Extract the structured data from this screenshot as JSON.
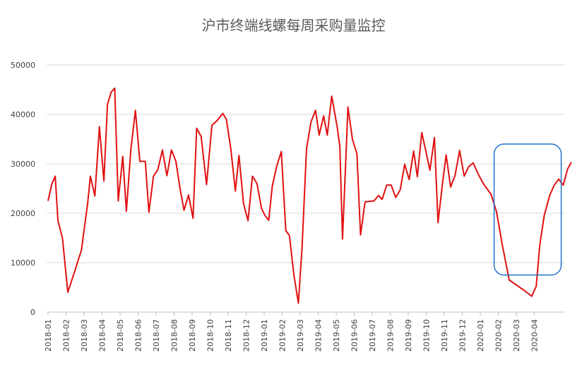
{
  "chart_data": {
    "type": "line",
    "title": "沪市终端线螺每周采购量监控",
    "xlabel": "",
    "ylabel": "",
    "ylim": [
      0,
      50000
    ],
    "yticks": [
      "0",
      "10000",
      "20000",
      "30000",
      "40000",
      "50000"
    ],
    "x_tick_labels": [
      "2018-01",
      "2018-02",
      "2018-03",
      "2018-04",
      "2018-05",
      "2018-06",
      "2018-07",
      "2018-08",
      "2018-09",
      "2018-10",
      "2018-11",
      "2018-12",
      "2019-01",
      "2019-02",
      "2019-03",
      "2019-04",
      "2019-05",
      "2019-06",
      "2019-07",
      "2019-08",
      "2019-09",
      "2019-10",
      "2019-11",
      "2019-12",
      "2020-01",
      "2020-02",
      "2020-03",
      "2020-04"
    ],
    "grid": true,
    "legend": "none",
    "line_color": "#e01010",
    "highlight_color": "#1f73c8",
    "highlight_region": {
      "x_start": "2020-02",
      "x_end": "2020-04",
      "y_start": 7500,
      "y_end": 34000
    },
    "series": [
      {
        "values": [
          [
            0,
            22500
          ],
          [
            0.2,
            25800
          ],
          [
            0.4,
            27500
          ],
          [
            0.55,
            18500
          ],
          [
            0.8,
            15000
          ],
          [
            1.1,
            4000
          ],
          [
            1.5,
            8500
          ],
          [
            1.85,
            12500
          ],
          [
            2.2,
            22000
          ],
          [
            2.35,
            27500
          ],
          [
            2.6,
            23500
          ],
          [
            2.85,
            37500
          ],
          [
            3.1,
            26500
          ],
          [
            3.3,
            42000
          ],
          [
            3.5,
            44500
          ],
          [
            3.7,
            45300
          ],
          [
            3.9,
            22500
          ],
          [
            4.15,
            31500
          ],
          [
            4.35,
            20400
          ],
          [
            4.6,
            33000
          ],
          [
            4.85,
            40800
          ],
          [
            5.1,
            30500
          ],
          [
            5.4,
            30500
          ],
          [
            5.6,
            20200
          ],
          [
            5.85,
            27500
          ],
          [
            6.1,
            28800
          ],
          [
            6.35,
            32800
          ],
          [
            6.6,
            27600
          ],
          [
            6.85,
            32800
          ],
          [
            7.1,
            30500
          ],
          [
            7.35,
            24500
          ],
          [
            7.55,
            20600
          ],
          [
            7.8,
            23700
          ],
          [
            8.05,
            19000
          ],
          [
            8.25,
            37200
          ],
          [
            8.5,
            35500
          ],
          [
            8.8,
            25800
          ],
          [
            9.1,
            37800
          ],
          [
            9.4,
            38800
          ],
          [
            9.7,
            40200
          ],
          [
            9.9,
            39000
          ],
          [
            10.15,
            33000
          ],
          [
            10.4,
            24500
          ],
          [
            10.6,
            31700
          ],
          [
            10.85,
            22000
          ],
          [
            11.1,
            18500
          ],
          [
            11.35,
            27500
          ],
          [
            11.6,
            26000
          ],
          [
            11.85,
            21000
          ],
          [
            12.05,
            19500
          ],
          [
            12.25,
            18600
          ],
          [
            12.45,
            25500
          ],
          [
            12.7,
            29500
          ],
          [
            12.95,
            32500
          ],
          [
            13.2,
            16500
          ],
          [
            13.4,
            15500
          ],
          [
            13.65,
            7500
          ],
          [
            13.9,
            1800
          ],
          [
            14.1,
            13000
          ],
          [
            14.35,
            33000
          ],
          [
            14.6,
            38500
          ],
          [
            14.85,
            40800
          ],
          [
            15.05,
            35800
          ],
          [
            15.3,
            39700
          ],
          [
            15.5,
            35800
          ],
          [
            15.75,
            43700
          ],
          [
            16.05,
            37500
          ],
          [
            16.2,
            33500
          ],
          [
            16.35,
            14800
          ],
          [
            16.65,
            41500
          ],
          [
            16.9,
            35000
          ],
          [
            17.15,
            32000
          ],
          [
            17.35,
            15600
          ],
          [
            17.6,
            22300
          ],
          [
            17.85,
            22400
          ],
          [
            18.1,
            22500
          ],
          [
            18.35,
            23600
          ],
          [
            18.55,
            22800
          ],
          [
            18.8,
            25700
          ],
          [
            19.05,
            25700
          ],
          [
            19.3,
            23200
          ],
          [
            19.55,
            24700
          ],
          [
            19.8,
            29900
          ],
          [
            20.05,
            26800
          ],
          [
            20.3,
            32600
          ],
          [
            20.5,
            27400
          ],
          [
            20.75,
            36300
          ],
          [
            20.95,
            33000
          ],
          [
            21.2,
            28700
          ],
          [
            21.45,
            35300
          ],
          [
            21.65,
            18100
          ],
          [
            21.9,
            26000
          ],
          [
            22.1,
            31800
          ],
          [
            22.35,
            25300
          ],
          [
            22.6,
            27700
          ],
          [
            22.85,
            32700
          ],
          [
            23.1,
            27500
          ],
          [
            23.35,
            29400
          ],
          [
            23.6,
            30200
          ],
          [
            23.9,
            27800
          ],
          [
            24.2,
            25800
          ],
          [
            24.6,
            23800
          ],
          [
            24.9,
            20300
          ],
          [
            25.2,
            14000
          ],
          [
            25.6,
            6500
          ],
          [
            26.0,
            5500
          ],
          [
            26.5,
            4200
          ],
          [
            26.85,
            3200
          ],
          [
            27.1,
            5200
          ],
          [
            27.3,
            13500
          ],
          [
            27.55,
            19600
          ],
          [
            27.85,
            23600
          ],
          [
            28.1,
            25700
          ],
          [
            28.35,
            26900
          ],
          [
            28.6,
            25700
          ],
          [
            28.85,
            29000
          ],
          [
            29.05,
            30300
          ]
        ]
      }
    ]
  }
}
